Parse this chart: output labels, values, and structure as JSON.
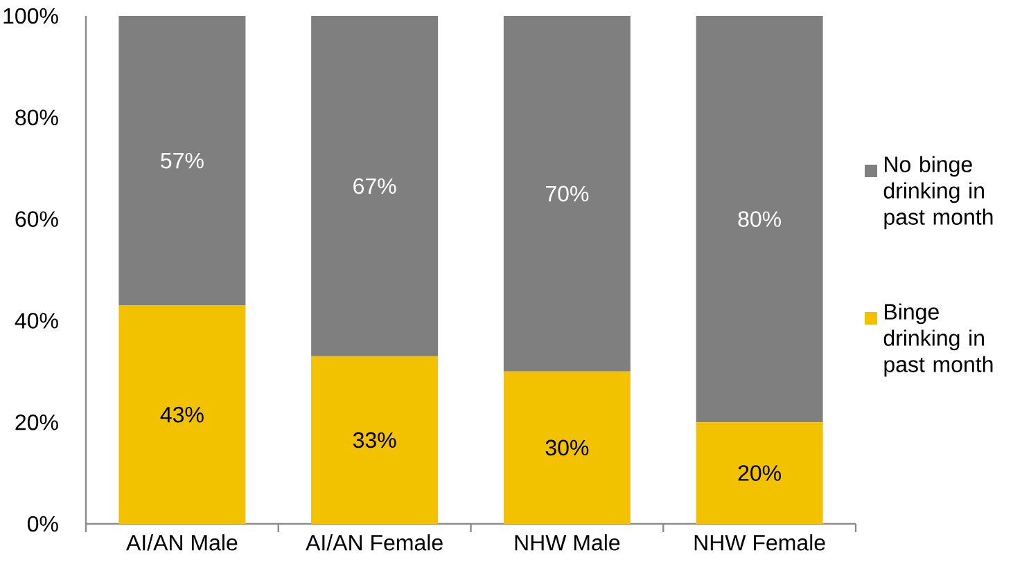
{
  "chart_data": {
    "type": "bar",
    "stacked": true,
    "categories": [
      "AI/AN Male",
      "AI/AN Female",
      "NHW Male",
      "NHW Female"
    ],
    "series": [
      {
        "name": "Binge drinking in past month",
        "color": "#f2c200",
        "values": [
          43,
          33,
          30,
          20
        ],
        "value_labels": [
          "43%",
          "33%",
          "30%",
          "20%"
        ]
      },
      {
        "name": "No binge drinking in past month",
        "color": "#7f7f7f",
        "values": [
          57,
          67,
          70,
          80
        ],
        "value_labels": [
          "57%",
          "67%",
          "70%",
          "80%"
        ]
      }
    ],
    "ylim": [
      0,
      100
    ],
    "yticks": [
      {
        "value": 0,
        "label": "0%"
      },
      {
        "value": 20,
        "label": "20%"
      },
      {
        "value": 40,
        "label": "40%"
      },
      {
        "value": 60,
        "label": "60%"
      },
      {
        "value": 80,
        "label": "80%"
      },
      {
        "value": 100,
        "label": "100%"
      }
    ],
    "legend": "right",
    "grid": false
  }
}
